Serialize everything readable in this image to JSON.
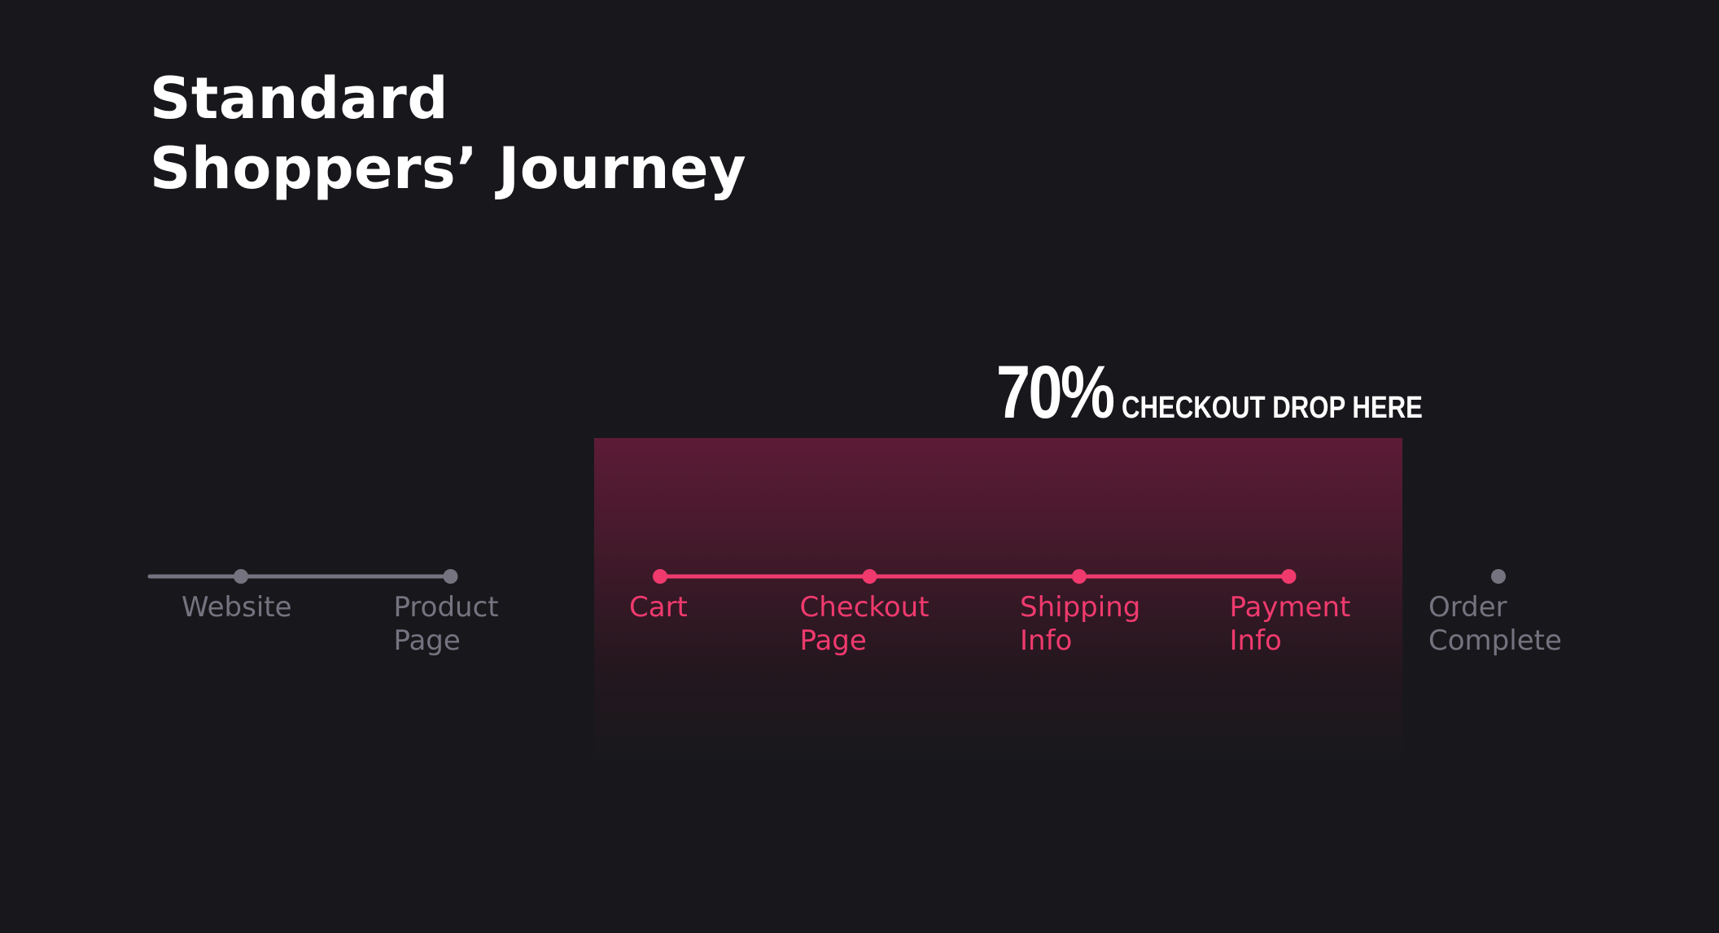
{
  "title": {
    "line1": "Standard",
    "line2": "Shoppers’ Journey"
  },
  "callout": {
    "percent": "70%",
    "text": "CHECKOUT DROP HERE"
  },
  "colors": {
    "background": "#18181c",
    "inactive": "#75737f",
    "active": "#f03a6e",
    "title": "#ffffff"
  },
  "steps": [
    {
      "label": "Website",
      "active": false
    },
    {
      "label": "Product\nPage",
      "active": false
    },
    {
      "label": "Cart",
      "active": true
    },
    {
      "label": "Checkout\nPage",
      "active": true
    },
    {
      "label": "Shipping\nInfo",
      "active": true
    },
    {
      "label": "Payment\nInfo",
      "active": true
    },
    {
      "label": "Order\nComplete",
      "active": false
    }
  ]
}
